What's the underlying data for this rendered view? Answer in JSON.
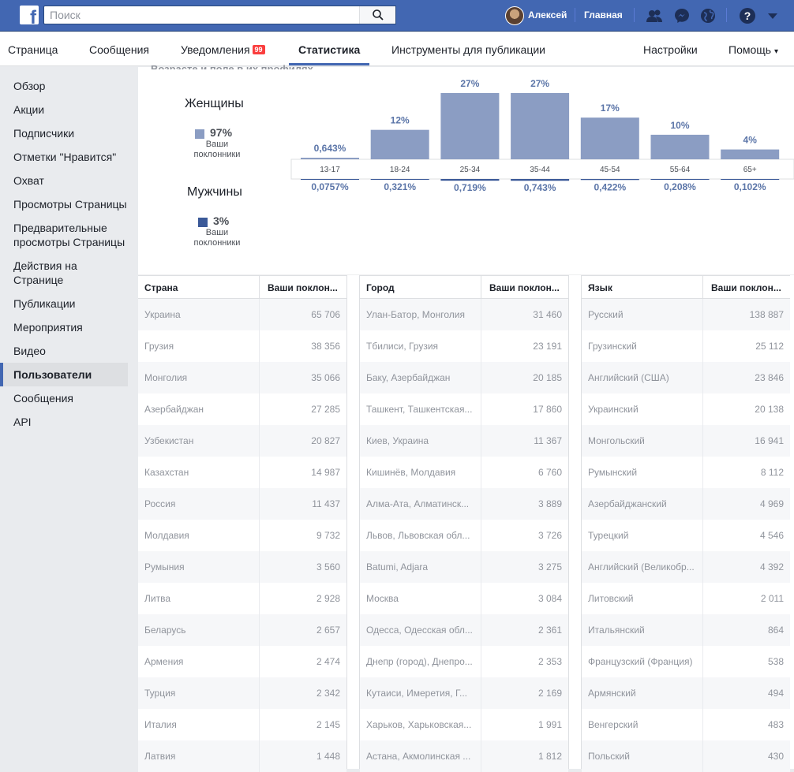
{
  "topbar": {
    "logo": "f",
    "search_placeholder": "Поиск",
    "user_name": "Алексей",
    "home": "Главная",
    "icons": [
      "friends-icon",
      "messenger-icon",
      "globe-icon",
      "help-icon",
      "dropdown-icon"
    ]
  },
  "nav": {
    "items": [
      "Страница",
      "Сообщения",
      "Уведомления",
      "Статистика",
      "Инструменты для публикации",
      "Настройки",
      "Помощь"
    ],
    "notif_count": "99",
    "active": "Статистика",
    "help_arrow": "▾"
  },
  "sidebar": {
    "items": [
      "Обзор",
      "Акции",
      "Подписчики",
      "Отметки \"Нравится\"",
      "Охват",
      "Просмотры Страницы",
      "Предварительные просмотры Страницы",
      "Действия на Странице",
      "Публикации",
      "Мероприятия",
      "Видео",
      "Пользователи",
      "Сообщения",
      "API"
    ],
    "active": "Пользователи"
  },
  "main": {
    "cut_heading": "Возрасте и поле в их профилях."
  },
  "gender": {
    "women": {
      "title": "Женщины",
      "pct": "97%",
      "caption": "Ваши поклонники",
      "color": "#8b9dc3"
    },
    "men": {
      "title": "Мужчины",
      "pct": "3%",
      "caption": "Ваши поклонники",
      "color": "#3b5998"
    }
  },
  "chart_data": {
    "type": "bar",
    "categories": [
      "13-17",
      "18-24",
      "25-34",
      "35-44",
      "45-54",
      "55-64",
      "65+"
    ],
    "series": [
      {
        "name": "Женщины",
        "values": [
          0.643,
          12,
          27,
          27,
          17,
          10,
          4
        ],
        "labels": [
          "0,643%",
          "12%",
          "27%",
          "27%",
          "17%",
          "10%",
          "4%"
        ],
        "color": "#8b9dc3"
      },
      {
        "name": "Мужчины",
        "values": [
          0.0757,
          0.321,
          0.719,
          0.743,
          0.422,
          0.208,
          0.102
        ],
        "labels": [
          "0,0757%",
          "0,321%",
          "0,719%",
          "0,743%",
          "0,422%",
          "0,208%",
          "0,102%"
        ],
        "color": "#3b5998"
      }
    ]
  },
  "tables": [
    {
      "header": [
        "Страна",
        "Ваши поклон..."
      ],
      "rows": [
        [
          "Украина",
          "65 706"
        ],
        [
          "Грузия",
          "38 356"
        ],
        [
          "Монголия",
          "35 066"
        ],
        [
          "Азербайджан",
          "27 285"
        ],
        [
          "Узбекистан",
          "20 827"
        ],
        [
          "Казахстан",
          "14 987"
        ],
        [
          "Россия",
          "11 437"
        ],
        [
          "Молдавия",
          "9 732"
        ],
        [
          "Румыния",
          "3 560"
        ],
        [
          "Литва",
          "2 928"
        ],
        [
          "Беларусь",
          "2 657"
        ],
        [
          "Армения",
          "2 474"
        ],
        [
          "Турция",
          "2 342"
        ],
        [
          "Италия",
          "2 145"
        ],
        [
          "Латвия",
          "1 448"
        ]
      ]
    },
    {
      "header": [
        "Город",
        "Ваши поклон..."
      ],
      "rows": [
        [
          "Улан-Батор, Монголия",
          "31 460"
        ],
        [
          "Тбилиси, Грузия",
          "23 191"
        ],
        [
          "Баку, Азербайджан",
          "20 185"
        ],
        [
          "Ташкент, Ташкентская...",
          "17 860"
        ],
        [
          "Киев, Украина",
          "11 367"
        ],
        [
          "Кишинёв, Молдавия",
          "6 760"
        ],
        [
          "Алма-Ата, Алматинск...",
          "3 889"
        ],
        [
          "Львов, Львовская обл...",
          "3 726"
        ],
        [
          "Batumi, Adjara",
          "3 275"
        ],
        [
          "Москва",
          "3 084"
        ],
        [
          "Одесса, Одесская обл...",
          "2 361"
        ],
        [
          "Днепр (город), Днепро...",
          "2 353"
        ],
        [
          "Кутаиси, Имеретия, Г...",
          "2 169"
        ],
        [
          "Харьков, Харьковская...",
          "1 991"
        ],
        [
          "Астана, Акмолинская ...",
          "1 812"
        ]
      ]
    },
    {
      "header": [
        "Язык",
        "Ваши поклон..."
      ],
      "rows": [
        [
          "Русский",
          "138 887"
        ],
        [
          "Грузинский",
          "25 112"
        ],
        [
          "Английский (США)",
          "23 846"
        ],
        [
          "Украинский",
          "20 138"
        ],
        [
          "Монгольский",
          "16 941"
        ],
        [
          "Румынский",
          "8 112"
        ],
        [
          "Азербайджанский",
          "4 969"
        ],
        [
          "Турецкий",
          "4 546"
        ],
        [
          "Английский (Великобр...",
          "4 392"
        ],
        [
          "Литовский",
          "2 011"
        ],
        [
          "Итальянский",
          "864"
        ],
        [
          "Французский (Франция)",
          "538"
        ],
        [
          "Армянский",
          "494"
        ],
        [
          "Венгерский",
          "483"
        ],
        [
          "Польский",
          "430"
        ]
      ]
    }
  ]
}
